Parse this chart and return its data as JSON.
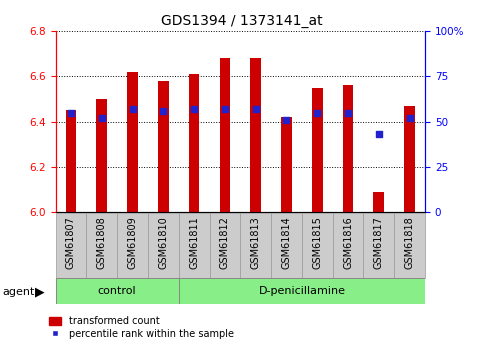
{
  "title": "GDS1394 / 1373141_at",
  "samples": [
    "GSM61807",
    "GSM61808",
    "GSM61809",
    "GSM61810",
    "GSM61811",
    "GSM61812",
    "GSM61813",
    "GSM61814",
    "GSM61815",
    "GSM61816",
    "GSM61817",
    "GSM61818"
  ],
  "transformed_count": [
    6.45,
    6.5,
    6.62,
    6.58,
    6.61,
    6.68,
    6.68,
    6.42,
    6.55,
    6.56,
    6.09,
    6.47
  ],
  "percentile_rank": [
    55,
    52,
    57,
    56,
    57,
    57,
    57,
    51,
    55,
    55,
    43,
    52
  ],
  "bar_bottom": 6.0,
  "ylim_left": [
    6.0,
    6.8
  ],
  "ylim_right": [
    0,
    100
  ],
  "yticks_left": [
    6.0,
    6.2,
    6.4,
    6.6,
    6.8
  ],
  "yticks_right": [
    0,
    25,
    50,
    75,
    100
  ],
  "bar_color": "#cc0000",
  "dot_color": "#2222cc",
  "n_control": 4,
  "n_treatment": 8,
  "control_label": "control",
  "treatment_label": "D-penicillamine",
  "agent_label": "agent",
  "legend_red": "transformed count",
  "legend_blue": "percentile rank within the sample",
  "group_box_color": "#88ee88",
  "tick_bg_color": "#cccccc",
  "bar_width": 0.35,
  "title_fontsize": 10,
  "axis_fontsize": 7.5,
  "label_fontsize": 7,
  "group_fontsize": 8
}
